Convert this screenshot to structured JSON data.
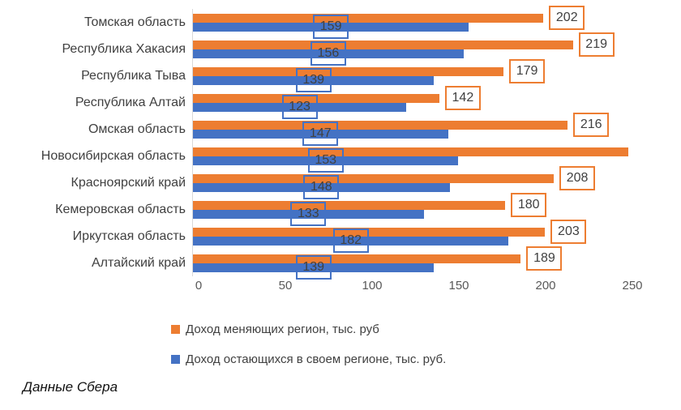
{
  "chart_data": {
    "type": "bar",
    "orientation": "horizontal",
    "title": "",
    "xlabel": "",
    "ylabel": "",
    "categories": [
      "Томская область",
      "Республика Хакасия",
      "Республика Тыва",
      "Республика Алтай",
      "Омская область",
      "Новосибирская область",
      "Красноярский край",
      "Кемеровская область",
      "Иркутская область",
      "Алтайский край"
    ],
    "series": [
      {
        "name": "Доход меняющих регион, тыс. руб",
        "color": "#ED7D31",
        "values": [
          202,
          219,
          179,
          142,
          216,
          251,
          208,
          180,
          203,
          189
        ],
        "data_labels": [
          "202",
          "219",
          "179",
          "142",
          "216",
          "",
          "208",
          "180",
          "203",
          "189"
        ],
        "label_position": "outside-end"
      },
      {
        "name": "Доход остающихся в своем регионе, тыс. руб.",
        "color": "#4472C4",
        "values": [
          159,
          156,
          139,
          123,
          147,
          153,
          148,
          133,
          182,
          139
        ],
        "data_labels": [
          "159",
          "156",
          "139",
          "123",
          "147",
          "153",
          "148",
          "133",
          "182",
          "139"
        ],
        "label_position": "center"
      }
    ],
    "x_ticks": [
      0,
      50,
      100,
      150,
      200,
      250
    ],
    "xlim": [
      0,
      265
    ],
    "grid": false,
    "legend_position": "bottom-left"
  },
  "colors": {
    "series_migrant": "#ED7D31",
    "series_staying": "#4472C4",
    "label_text": "#404040",
    "tick_text": "#595959",
    "axis_line": "#d9d9d9",
    "background": "#ffffff"
  },
  "footer": {
    "source_label": "Данные Сбера"
  }
}
